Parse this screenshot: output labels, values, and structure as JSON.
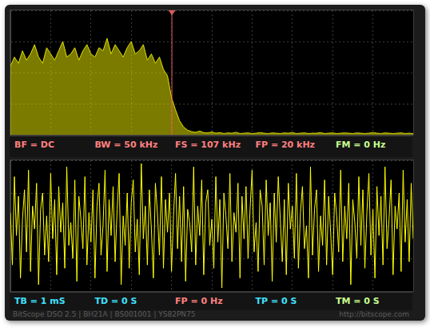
{
  "chart_data": [
    {
      "type": "area",
      "color": "#e0e000",
      "x": [
        0,
        0.5,
        1,
        1.5,
        2,
        2.5,
        3,
        3.5,
        4,
        4.5,
        5,
        5.5,
        6,
        6.5,
        7,
        7.5,
        8,
        8.5,
        9,
        9.5,
        10,
        10.5,
        11,
        11.5,
        12,
        12.5,
        13,
        13.5,
        14,
        14.5,
        15,
        15.5,
        16,
        16.5,
        17,
        17.5,
        18,
        18.5,
        19,
        19.5,
        20,
        20.5,
        21,
        21.5,
        22,
        22.5,
        23,
        23.5,
        24,
        24.5,
        25,
        25.5,
        26,
        26.5,
        27,
        27.5,
        28,
        28.5,
        29,
        29.5,
        30,
        30.5,
        31,
        31.5,
        32,
        32.5,
        33,
        33.5,
        34,
        34.5,
        35,
        35.5,
        36,
        36.5,
        37,
        37.5,
        38,
        38.5,
        39,
        39.5,
        40,
        40.5,
        41,
        41.5,
        42,
        42.5,
        43,
        43.5,
        44,
        44.5,
        45,
        45.5,
        46,
        46.5,
        47,
        47.5,
        48,
        48.5,
        49,
        49.5,
        50
      ],
      "values": [
        2.2,
        2.5,
        2.3,
        2.7,
        2.4,
        2.6,
        2.9,
        2.5,
        2.3,
        2.8,
        2.6,
        2.4,
        2.7,
        3.0,
        2.5,
        2.6,
        2.8,
        2.4,
        2.7,
        2.9,
        2.6,
        2.5,
        2.8,
        2.7,
        3.1,
        2.6,
        2.9,
        2.7,
        2.5,
        2.8,
        3.0,
        2.6,
        2.7,
        2.9,
        2.4,
        2.6,
        2.3,
        2.5,
        2.1,
        1.9,
        1.2,
        0.8,
        0.45,
        0.25,
        0.15,
        0.1,
        0.08,
        0.12,
        0.07,
        0.06,
        0.09,
        0.05,
        0.07,
        0.04,
        0.06,
        0.05,
        0.08,
        0.04,
        0.05,
        0.06,
        0.04,
        0.05,
        0.07,
        0.05,
        0.04,
        0.06,
        0.05,
        0.04,
        0.06,
        0.05,
        0.07,
        0.04,
        0.05,
        0.06,
        0.04,
        0.05,
        0.05,
        0.07,
        0.04,
        0.05,
        0.06,
        0.04,
        0.05,
        0.06,
        0.05,
        0.04,
        0.06,
        0.05,
        0.04,
        0.05,
        0.07,
        0.05,
        0.04,
        0.06,
        0.05,
        0.04,
        0.05,
        0.06,
        0.04,
        0.05,
        0.04
      ],
      "xlim": [
        0,
        50
      ],
      "xticks": [
        0,
        5,
        10,
        15,
        20,
        25,
        30,
        35,
        40,
        45,
        50
      ],
      "ylim": [
        0,
        4
      ],
      "yticks": [
        0,
        1,
        2,
        3,
        4
      ],
      "grid": true,
      "tick_labels": false,
      "cursor_x": 20,
      "annotations": [
        {
          "text": "BF = DC",
          "color": "#ff8080"
        },
        {
          "text": "BW = 50 kHz",
          "color": "#ff8080"
        },
        {
          "text": "FS = 107 kHz",
          "color": "#ff8080"
        },
        {
          "text": "FP = 20 kHz",
          "color": "#ff8080"
        },
        {
          "text": "FM = 0 Hz",
          "color": "#c8ff90"
        }
      ]
    },
    {
      "type": "line",
      "color": "#ffff00",
      "x": [
        0,
        0.05,
        0.1,
        0.15,
        0.2,
        0.25,
        0.3,
        0.35,
        0.4,
        0.45,
        0.5,
        0.55,
        0.6,
        0.65,
        0.7,
        0.75,
        0.8,
        0.85,
        0.9,
        0.95,
        1,
        1.05,
        1.1,
        1.15,
        1.2,
        1.25,
        1.3,
        1.35,
        1.4,
        1.45,
        1.5,
        1.55,
        1.6,
        1.65,
        1.7,
        1.75,
        1.8,
        1.85,
        1.9,
        1.95,
        2,
        2.05,
        2.1,
        2.15,
        2.2,
        2.25,
        2.3,
        2.35,
        2.4,
        2.45,
        2.5,
        2.55,
        2.6,
        2.65,
        2.7,
        2.75,
        2.8,
        2.85,
        2.9,
        2.95,
        3,
        3.05,
        3.1,
        3.15,
        3.2,
        3.25,
        3.3,
        3.35,
        3.4,
        3.45,
        3.5,
        3.55,
        3.6,
        3.65,
        3.7,
        3.75,
        3.8,
        3.85,
        3.9,
        3.95,
        4,
        4.05,
        4.1,
        4.15,
        4.2,
        4.25,
        4.3,
        4.35,
        4.4,
        4.45,
        4.5,
        4.55,
        4.6,
        4.65,
        4.7,
        4.75,
        4.8,
        4.85,
        4.9,
        4.95,
        5,
        5.05,
        5.1,
        5.15,
        5.2,
        5.25,
        5.3,
        5.35,
        5.4,
        5.45,
        5.5,
        5.55,
        5.6,
        5.65,
        5.7,
        5.75,
        5.8,
        5.85,
        5.9,
        5.95,
        6,
        6.05,
        6.1,
        6.15,
        6.2,
        6.25,
        6.3,
        6.35,
        6.4,
        6.45,
        6.5,
        6.55,
        6.6,
        6.65,
        6.7,
        6.75,
        6.8,
        6.85,
        6.9,
        6.95,
        7,
        7.05,
        7.1,
        7.15,
        7.2,
        7.25,
        7.3,
        7.35,
        7.4,
        7.45,
        7.5,
        7.55,
        7.6,
        7.65,
        7.7,
        7.75,
        7.8,
        7.85,
        7.9,
        7.95,
        8,
        8.05,
        8.1,
        8.15,
        8.2,
        8.25,
        8.3,
        8.35,
        8.4,
        8.45,
        8.5,
        8.55,
        8.6,
        8.65,
        8.7,
        8.75,
        8.8,
        8.85,
        8.9,
        8.95,
        9,
        9.05,
        9.1,
        9.15,
        9.2,
        9.25,
        9.3,
        9.35,
        9.4,
        9.45,
        9.5,
        9.55,
        9.6,
        9.65,
        9.7,
        9.75,
        9.8,
        9.85,
        9.9,
        9.95,
        10
      ],
      "values": [
        0.4,
        -1.2,
        1.5,
        -0.3,
        0.9,
        -1.6,
        0.2,
        1.1,
        -0.8,
        1.7,
        -1.4,
        0.6,
        -0.1,
        1.3,
        -1.8,
        0.5,
        1.0,
        -0.9,
        0.3,
        -1.1,
        1.6,
        -0.4,
        0.8,
        -1.5,
        1.2,
        -0.2,
        0.7,
        -1.3,
        1.8,
        -0.6,
        0.1,
        -1.0,
        1.4,
        -1.7,
        0.9,
        0.2,
        -0.7,
        1.5,
        -1.2,
        0.4,
        -0.5,
        1.1,
        -1.6,
        0.6,
        1.3,
        -0.9,
        0.0,
        1.7,
        -1.4,
        0.8,
        -0.3,
        1.2,
        -1.1,
        0.5,
        1.6,
        -1.8,
        0.3,
        -0.6,
        1.0,
        -1.3,
        0.7,
        1.4,
        -0.8,
        0.2,
        -1.5,
        1.9,
        -0.4,
        0.6,
        -1.2,
        1.1,
        -0.1,
        -1.6,
        1.3,
        0.4,
        -0.9,
        1.5,
        -1.3,
        0.8,
        -0.2,
        1.0,
        -1.4,
        0.3,
        1.6,
        -0.7,
        0.9,
        -1.1,
        1.2,
        -1.7,
        0.5,
        0.1,
        -0.8,
        1.8,
        -1.2,
        0.6,
        -0.3,
        1.4,
        -1.5,
        0.7,
        1.1,
        -0.6,
        0.2,
        -1.3,
        1.5,
        -0.5,
        0.8,
        -1.9,
        1.0,
        0.3,
        -0.7,
        1.6,
        -1.1,
        0.4,
        -0.2,
        1.3,
        -1.6,
        0.9,
        -0.4,
        1.2,
        -1.0,
        0.5,
        1.7,
        -0.8,
        0.1,
        -1.4,
        1.1,
        0.6,
        -1.2,
        1.4,
        -0.3,
        0.7,
        -1.7,
        1.0,
        -0.5,
        1.5,
        0.2,
        -1.1,
        0.8,
        -1.5,
        1.3,
        -0.1,
        0.6,
        -1.0,
        1.6,
        -1.3,
        0.4,
        1.2,
        -0.7,
        0.0,
        -1.6,
        1.8,
        -0.9,
        0.5,
        1.1,
        -1.4,
        0.3,
        -0.6,
        1.4,
        -1.2,
        0.9,
        -0.2,
        -1.5,
        1.0,
        0.3,
        -0.8,
        1.7,
        -1.1,
        0.6,
        -0.4,
        1.3,
        -1.8,
        0.8,
        0.1,
        -1.0,
        1.5,
        -0.6,
        1.1,
        -1.3,
        0.4,
        1.6,
        -0.9,
        0.5,
        -1.6,
        1.2,
        -0.3,
        0.9,
        -1.2,
        1.8,
        -0.7,
        0.2,
        1.4,
        -1.5,
        0.6,
        -0.1,
        1.0,
        -1.4,
        1.7,
        -0.5,
        0.8,
        -1.1,
        1.3,
        -0.4
      ],
      "xlim": [
        0,
        10
      ],
      "xticks": [
        0,
        1,
        2,
        3,
        4,
        5,
        6,
        7,
        8,
        9,
        10
      ],
      "ylim": [
        -2,
        2
      ],
      "yticks": [
        -2,
        -1,
        0,
        1,
        2
      ],
      "grid": true,
      "tick_labels": false,
      "annotations": [
        {
          "text": "TB = 1 mS",
          "color": "#40e0ff"
        },
        {
          "text": "TD = 0 S",
          "color": "#40e0ff"
        },
        {
          "text": "FP = 0 Hz",
          "color": "#ff8080"
        },
        {
          "text": "TP = 0 S",
          "color": "#40e0ff"
        },
        {
          "text": "TM = 0 S",
          "color": "#c8ff90"
        }
      ]
    }
  ],
  "footer": {
    "left": "BitScope DSO 2.5 | BH21A | BS001001 | YS82PN75",
    "right": "http://bitscope.com"
  }
}
